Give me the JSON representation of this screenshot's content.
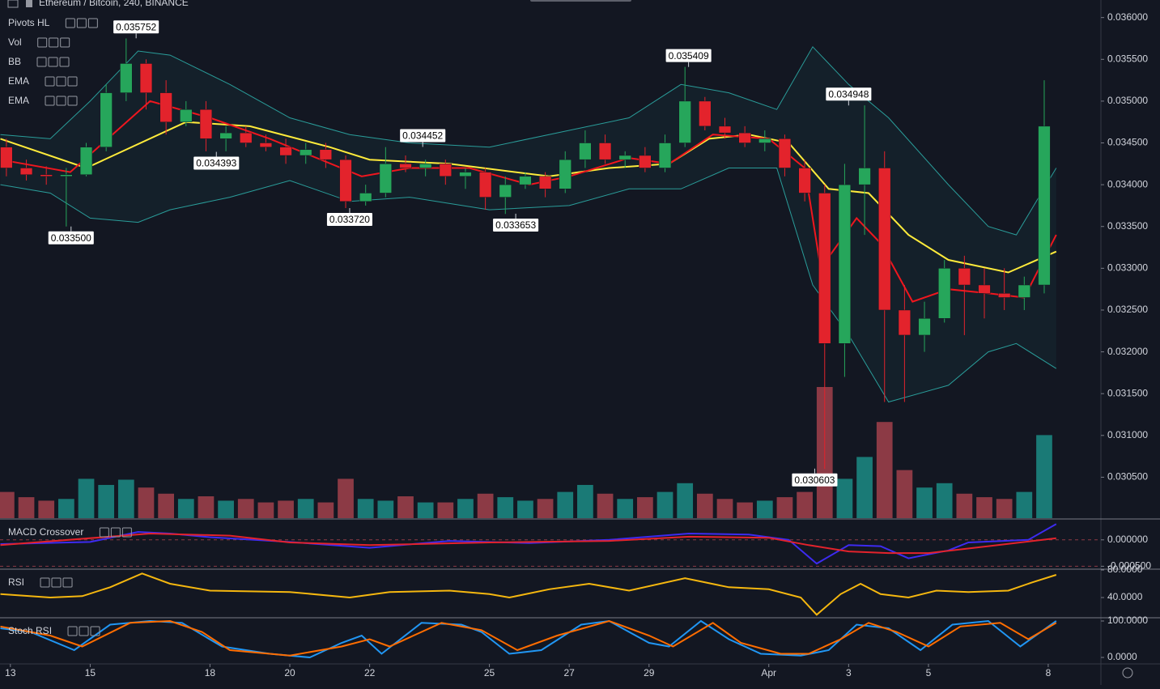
{
  "header": {
    "title": "Ethereum / Bitcoin, 240, BINANCE",
    "indicators": [
      "Pivots HL",
      "Vol",
      "BB",
      "EMA",
      "EMA"
    ]
  },
  "chart_data": [
    {
      "type": "candlestick",
      "x": [
        12.9,
        13.4,
        13.9,
        14.4,
        14.9,
        15.4,
        15.9,
        16.4,
        16.9,
        17.4,
        17.9,
        18.4,
        18.9,
        19.4,
        19.9,
        20.4,
        20.9,
        21.4,
        21.9,
        22.4,
        22.9,
        23.4,
        23.9,
        24.4,
        24.9,
        25.4,
        25.9,
        26.4,
        26.9,
        27.4,
        27.9,
        28.4,
        28.9,
        29.4,
        29.9,
        30.4,
        30.9,
        31.4,
        31.9,
        32.4,
        32.9,
        33.4,
        33.9,
        34.4,
        34.9,
        35.4,
        35.9,
        36.4,
        36.9,
        37.4,
        37.9,
        38.4,
        38.9
      ],
      "open": [
        0.03445,
        0.0342,
        0.03412,
        0.0341,
        0.03412,
        0.03445,
        0.0351,
        0.03545,
        0.0351,
        0.03475,
        0.0349,
        0.03455,
        0.03462,
        0.0345,
        0.03445,
        0.03435,
        0.03442,
        0.0343,
        0.0338,
        0.0339,
        0.03425,
        0.0342,
        0.03425,
        0.0341,
        0.03415,
        0.03385,
        0.034,
        0.0341,
        0.03395,
        0.0343,
        0.0345,
        0.0343,
        0.03435,
        0.0342,
        0.0345,
        0.035,
        0.0347,
        0.03462,
        0.0345,
        0.03455,
        0.0342,
        0.0339,
        0.0321,
        0.034,
        0.0342,
        0.0325,
        0.0322,
        0.0324,
        0.033,
        0.0328,
        0.0327,
        0.03265,
        0.0328
      ],
      "high": [
        0.03455,
        0.0343,
        0.03422,
        0.0342,
        0.0345,
        0.0352,
        0.03575,
        0.0355,
        0.03525,
        0.035,
        0.035,
        0.0347,
        0.0347,
        0.0346,
        0.03455,
        0.0345,
        0.0345,
        0.03435,
        0.034,
        0.03445,
        0.03435,
        0.0343,
        0.0343,
        0.0342,
        0.0342,
        0.0341,
        0.03415,
        0.03415,
        0.0344,
        0.03465,
        0.0346,
        0.0344,
        0.03445,
        0.0346,
        0.03541,
        0.03505,
        0.0348,
        0.0347,
        0.03465,
        0.0346,
        0.0343,
        0.034,
        0.03425,
        0.03495,
        0.0344,
        0.0328,
        0.0326,
        0.0331,
        0.03315,
        0.033,
        0.033,
        0.0329,
        0.03525
      ],
      "low": [
        0.0341,
        0.03405,
        0.034,
        0.0335,
        0.0341,
        0.0344,
        0.035,
        0.0349,
        0.0346,
        0.0347,
        0.0344,
        0.0344,
        0.03445,
        0.0344,
        0.03425,
        0.03425,
        0.0342,
        0.03372,
        0.03375,
        0.03385,
        0.03415,
        0.0341,
        0.034,
        0.03395,
        0.0337,
        0.03365,
        0.03395,
        0.03385,
        0.0339,
        0.0342,
        0.03425,
        0.0342,
        0.03415,
        0.03415,
        0.03445,
        0.03465,
        0.03455,
        0.03445,
        0.0344,
        0.0341,
        0.0338,
        0.0306,
        0.0317,
        0.0334,
        0.0314,
        0.0314,
        0.032,
        0.03235,
        0.0322,
        0.0324,
        0.0325,
        0.0325,
        0.0327
      ],
      "close": [
        0.0342,
        0.03412,
        0.0341,
        0.03412,
        0.03445,
        0.0351,
        0.03545,
        0.0351,
        0.03475,
        0.0349,
        0.03455,
        0.03462,
        0.0345,
        0.03445,
        0.03435,
        0.03442,
        0.0343,
        0.0338,
        0.0339,
        0.03425,
        0.0342,
        0.03425,
        0.0341,
        0.03415,
        0.03385,
        0.034,
        0.0341,
        0.03395,
        0.0343,
        0.0345,
        0.0343,
        0.03435,
        0.0342,
        0.0345,
        0.035,
        0.0347,
        0.03462,
        0.0345,
        0.03455,
        0.0342,
        0.0339,
        0.0321,
        0.034,
        0.0342,
        0.0325,
        0.0322,
        0.0324,
        0.033,
        0.0328,
        0.0327,
        0.03265,
        0.0328,
        0.0347
      ],
      "up_color": "#26a65b",
      "down_color": "#e3232c",
      "volume": [
        30,
        24,
        20,
        22,
        45,
        38,
        44,
        35,
        28,
        22,
        25,
        20,
        22,
        18,
        20,
        22,
        18,
        45,
        22,
        20,
        25,
        18,
        18,
        22,
        28,
        24,
        20,
        22,
        30,
        38,
        28,
        22,
        24,
        30,
        40,
        28,
        22,
        18,
        20,
        24,
        30,
        150,
        45,
        70,
        110,
        55,
        35,
        40,
        28,
        24,
        22,
        30,
        95
      ],
      "volume_up_color": "#1a7a76",
      "volume_down_color": "#8c3a45",
      "lines": [
        {
          "color": "#ffeb3b",
          "x": [
            12.75,
            14.9,
            17.4,
            19,
            21,
            22,
            24,
            26.5,
            28,
            29.5,
            30.5,
            31.5,
            32.5,
            33.5,
            34.5,
            35.5,
            36.5,
            38,
            39.2
          ],
          "values": [
            0.03455,
            0.0342,
            0.03475,
            0.0347,
            0.03445,
            0.0343,
            0.03425,
            0.0341,
            0.0342,
            0.03425,
            0.03455,
            0.0346,
            0.0345,
            0.03395,
            0.0339,
            0.0334,
            0.0331,
            0.03295,
            0.0332
          ]
        },
        {
          "color": "#f0161e",
          "x": [
            12.75,
            14.5,
            16.5,
            18,
            19.5,
            21.8,
            23,
            24.5,
            26,
            27,
            28.5,
            29.5,
            30.6,
            32,
            32.9,
            33.3,
            34.2,
            34.8,
            35.6,
            36.5,
            37.5,
            38.4,
            39.2
          ],
          "values": [
            0.0343,
            0.03415,
            0.035,
            0.0348,
            0.03455,
            0.0341,
            0.0342,
            0.0342,
            0.034,
            0.0341,
            0.03432,
            0.03425,
            0.0346,
            0.03455,
            0.0342,
            0.033,
            0.0336,
            0.0333,
            0.0326,
            0.03275,
            0.0327,
            0.03265,
            0.0334
          ]
        }
      ],
      "bands": {
        "color": "#2a9d9a",
        "x": [
          12.75,
          14,
          15,
          16.2,
          17,
          18.5,
          20,
          21.5,
          23,
          25,
          27,
          28.5,
          29.8,
          31,
          32.2,
          33.1,
          34,
          35,
          36.5,
          37.5,
          38.2,
          39.2
        ],
        "upper": [
          0.0346,
          0.03455,
          0.035,
          0.0356,
          0.03555,
          0.0352,
          0.0348,
          0.0346,
          0.0345,
          0.03445,
          0.03465,
          0.0348,
          0.0352,
          0.0351,
          0.0349,
          0.03565,
          0.0352,
          0.0348,
          0.034,
          0.0335,
          0.0334,
          0.0342
        ],
        "lower": [
          0.034,
          0.0339,
          0.0336,
          0.03355,
          0.0337,
          0.03385,
          0.03405,
          0.0338,
          0.03385,
          0.0337,
          0.03375,
          0.03395,
          0.03395,
          0.0342,
          0.0342,
          0.0328,
          0.0322,
          0.0314,
          0.0316,
          0.032,
          0.0321,
          0.0318
        ]
      },
      "pivots": {
        "x": [
          16.15,
          14.52,
          18.16,
          21.5,
          23.33,
          25.66,
          29.99,
          34.0,
          33.15
        ],
        "values": [
          0.035752,
          0.0335,
          0.034393,
          0.03372,
          0.034452,
          0.033653,
          0.035409,
          0.034948,
          0.030603
        ],
        "value_labels": [
          "0.035752",
          "0.033500",
          "0.034393",
          "0.033720",
          "0.034452",
          "0.033653",
          "0.035409",
          "0.034948",
          "0.030603"
        ],
        "kinds": [
          "high",
          "low",
          "low",
          "low",
          "high",
          "low",
          "high",
          "high",
          "low"
        ]
      },
      "xlim": [
        12.74,
        40.32
      ],
      "ylim": [
        0.03001,
        0.03621
      ],
      "yticks": [
        {
          "value": 0.036,
          "label": "0.036000"
        },
        {
          "value": 0.0355,
          "label": "0.035500"
        },
        {
          "value": 0.035,
          "label": "0.035000"
        },
        {
          "value": 0.0345,
          "label": "0.034500"
        },
        {
          "value": 0.034,
          "label": "0.034000"
        },
        {
          "value": 0.0335,
          "label": "0.033500"
        },
        {
          "value": 0.033,
          "label": "0.033000"
        },
        {
          "value": 0.0325,
          "label": "0.032500"
        },
        {
          "value": 0.032,
          "label": "0.032000"
        },
        {
          "value": 0.0315,
          "label": "0.031500"
        },
        {
          "value": 0.031,
          "label": "0.031000"
        },
        {
          "value": 0.0305,
          "label": "0.030500"
        }
      ]
    },
    {
      "type": "line",
      "title": "MACD Crossover",
      "xlim": [
        12.74,
        40.32
      ],
      "ylim": [
        -0.00054,
        0.00038
      ],
      "tick_lines": true,
      "yticks": [
        {
          "value": 0,
          "label": "0.000000"
        },
        {
          "value": -0.0005,
          "label": "-0.000500"
        }
      ],
      "series": [
        {
          "color": "#3d2bf0",
          "x": [
            12.75,
            15,
            16.2,
            17,
            18,
            20,
            22,
            24,
            26,
            28,
            30,
            31.5,
            32.5,
            33.2,
            34,
            34.8,
            35.5,
            36.5,
            37,
            38.5,
            39.2
          ],
          "values": [
            -8e-05,
            -4e-05,
            0.00015,
            0.00012,
            5e-05,
            -4e-05,
            -0.00015,
            -2e-05,
            -6e-05,
            0,
            0.00012,
            0.0001,
            0,
            -0.00045,
            -0.0001,
            -0.00012,
            -0.00035,
            -0.0002,
            -5e-05,
            0,
            0.0003
          ]
        },
        {
          "color": "#e3232c",
          "x": [
            12.75,
            16.5,
            18.5,
            20,
            22,
            25,
            28,
            30,
            32,
            33,
            34,
            35,
            36,
            37.5,
            39.2
          ],
          "values": [
            -0.0001,
            0.00012,
            8e-05,
            -5e-05,
            -0.0001,
            -5e-05,
            -2e-05,
            6e-05,
            4e-05,
            -0.0001,
            -0.00022,
            -0.00025,
            -0.00025,
            -0.00012,
            3e-05
          ]
        }
      ]
    },
    {
      "type": "line",
      "title": "RSI",
      "xlim": [
        12.74,
        40.32
      ],
      "ylim": [
        11.8,
        80
      ],
      "yticks": [
        {
          "value": 80,
          "label": "80.0000"
        },
        {
          "value": 40,
          "label": "40.0000"
        }
      ],
      "series": [
        {
          "color": "#f5b70f",
          "x": [
            12.75,
            14,
            14.8,
            15.5,
            16.3,
            17,
            18,
            20,
            21.5,
            22.5,
            24,
            25,
            25.5,
            26.5,
            27.5,
            28.5,
            29.9,
            31,
            32,
            32.8,
            33.2,
            33.8,
            34.3,
            34.8,
            35.5,
            36.2,
            37,
            38,
            38.6,
            39.2
          ],
          "values": [
            45,
            40,
            42,
            55,
            75,
            60,
            50,
            48,
            40,
            48,
            50,
            45,
            40,
            52,
            60,
            50,
            68,
            55,
            52,
            40,
            15,
            45,
            60,
            45,
            40,
            50,
            48,
            50,
            62,
            73
          ]
        }
      ]
    },
    {
      "type": "line",
      "title": "Stoch RSI",
      "xlim": [
        12.74,
        40.32
      ],
      "ylim": [
        -17.8,
        106.7
      ],
      "yticks": [
        {
          "value": 100,
          "label": "100.0000"
        },
        {
          "value": 0,
          "label": "0.0000"
        }
      ],
      "series": [
        {
          "color": "#2196f3",
          "x": [
            12.75,
            13.5,
            14.6,
            15.5,
            16.5,
            17.3,
            18.3,
            19.5,
            20.5,
            21.3,
            21.8,
            22.3,
            23.3,
            24.3,
            24.8,
            25.5,
            26.3,
            27.3,
            28,
            29,
            29.5,
            30.3,
            31,
            31.8,
            32.8,
            33.5,
            34.2,
            35,
            35.8,
            36.6,
            37.5,
            38.3,
            39.2
          ],
          "values": [
            80,
            70,
            20,
            90,
            100,
            95,
            30,
            10,
            0,
            40,
            60,
            10,
            95,
            90,
            70,
            10,
            20,
            90,
            100,
            40,
            30,
            100,
            50,
            10,
            5,
            20,
            90,
            80,
            20,
            90,
            100,
            30,
            100
          ]
        },
        {
          "color": "#ff6d00",
          "x": [
            12.75,
            14,
            14.8,
            16,
            17,
            17.8,
            18.5,
            20,
            21.3,
            22,
            22.5,
            23.8,
            24.8,
            25.7,
            26.7,
            28,
            29,
            29.6,
            30.6,
            31.3,
            32.3,
            33,
            33.8,
            34.5,
            35.2,
            36,
            36.8,
            37.8,
            38.5,
            39.2
          ],
          "values": [
            85,
            60,
            30,
            95,
            100,
            70,
            20,
            5,
            30,
            50,
            30,
            95,
            75,
            20,
            60,
            100,
            60,
            30,
            95,
            40,
            10,
            10,
            50,
            95,
            70,
            30,
            85,
            95,
            50,
            95
          ]
        }
      ],
      "xticks": [
        13,
        15,
        18,
        20,
        22,
        25,
        27,
        29,
        {
          "value": 32,
          "label": "Apr"
        },
        {
          "value": 34,
          "label": "3"
        },
        {
          "value": 36,
          "label": "5"
        },
        {
          "value": 39,
          "label": "8"
        }
      ]
    }
  ]
}
